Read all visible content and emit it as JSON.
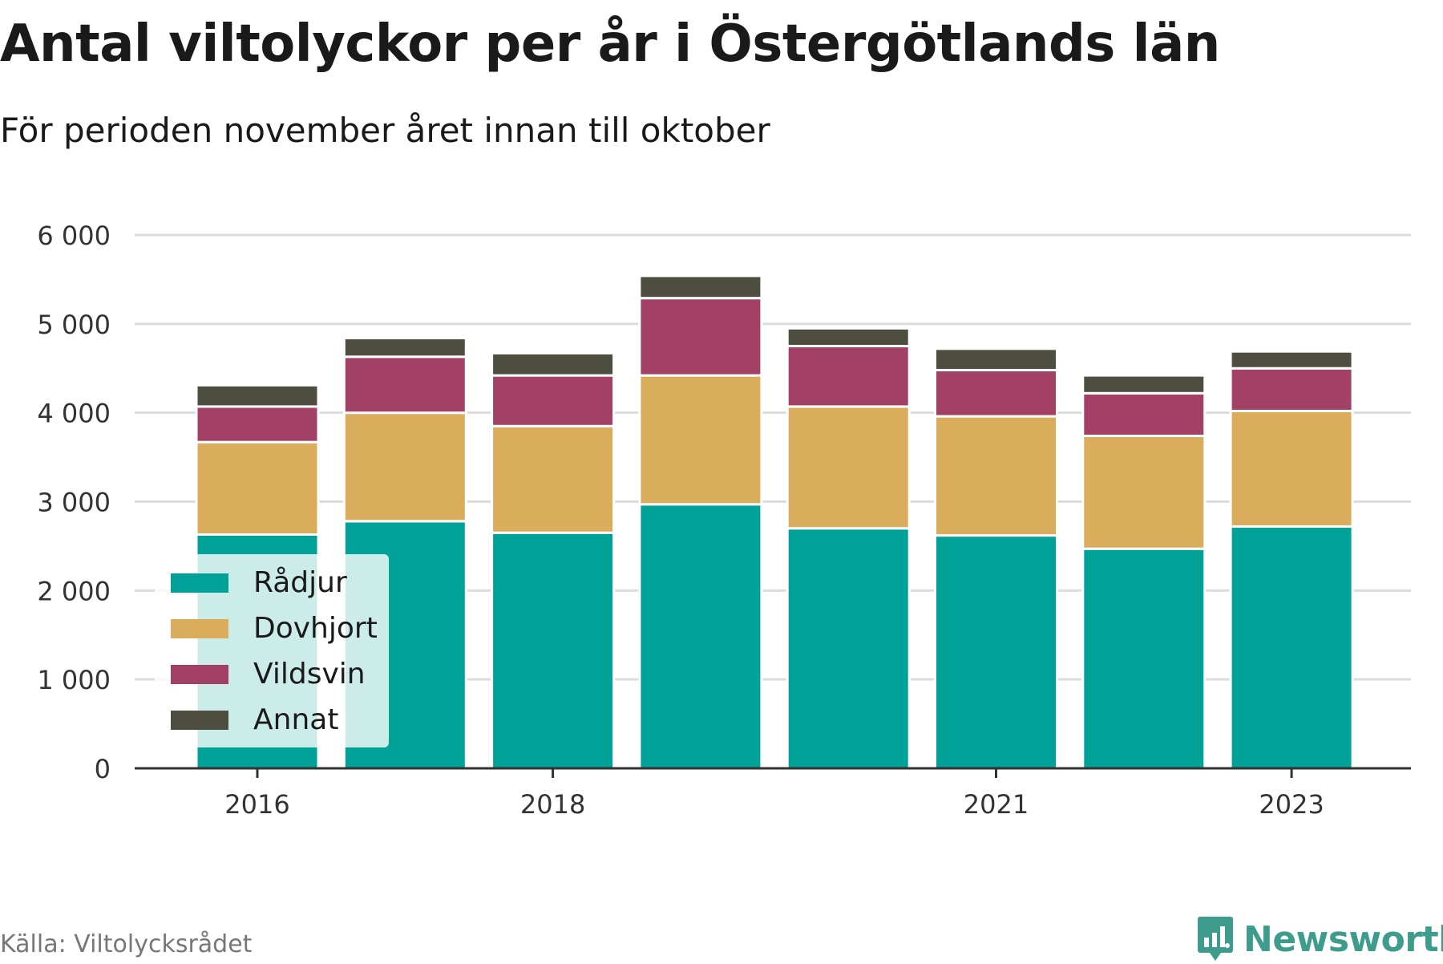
{
  "header": {
    "title": "Antal viltolyckor per år i Östergötlands län",
    "subtitle": "För perioden november året innan till oktober"
  },
  "footer": {
    "source": "Källa: Viltolycksrådet",
    "brand": "Newsworthy",
    "brand_icon": "chart-badge-icon",
    "brand_color": "#3d9c8c"
  },
  "chart_data": {
    "type": "bar",
    "stacked": true,
    "categories": [
      "2016",
      "2017",
      "2018",
      "2019",
      "2020",
      "2021",
      "2022",
      "2023"
    ],
    "x_tick_labels": [
      "2016",
      "",
      "2018",
      "",
      "",
      "2021",
      "",
      "2023"
    ],
    "series": [
      {
        "name": "Rådjur",
        "color": "#00a298",
        "values": [
          2630,
          2780,
          2650,
          2970,
          2700,
          2620,
          2470,
          2720
        ]
      },
      {
        "name": "Dovhjort",
        "color": "#d9ad5b",
        "values": [
          1040,
          1220,
          1200,
          1450,
          1370,
          1340,
          1270,
          1300
        ]
      },
      {
        "name": "Vildsvin",
        "color": "#a34066",
        "values": [
          400,
          630,
          570,
          870,
          680,
          520,
          480,
          480
        ]
      },
      {
        "name": "Annat",
        "color": "#4e4e40",
        "values": [
          240,
          210,
          250,
          250,
          200,
          240,
          200,
          190
        ]
      }
    ],
    "y_ticks": [
      0,
      1000,
      2000,
      3000,
      4000,
      5000,
      6000
    ],
    "y_tick_labels": [
      "0",
      "1 000",
      "2 000",
      "3 000",
      "4 000",
      "5 000",
      "6 000"
    ],
    "ylim": [
      0,
      6000
    ],
    "grid": true,
    "legend_position": "bottom-left inside"
  }
}
